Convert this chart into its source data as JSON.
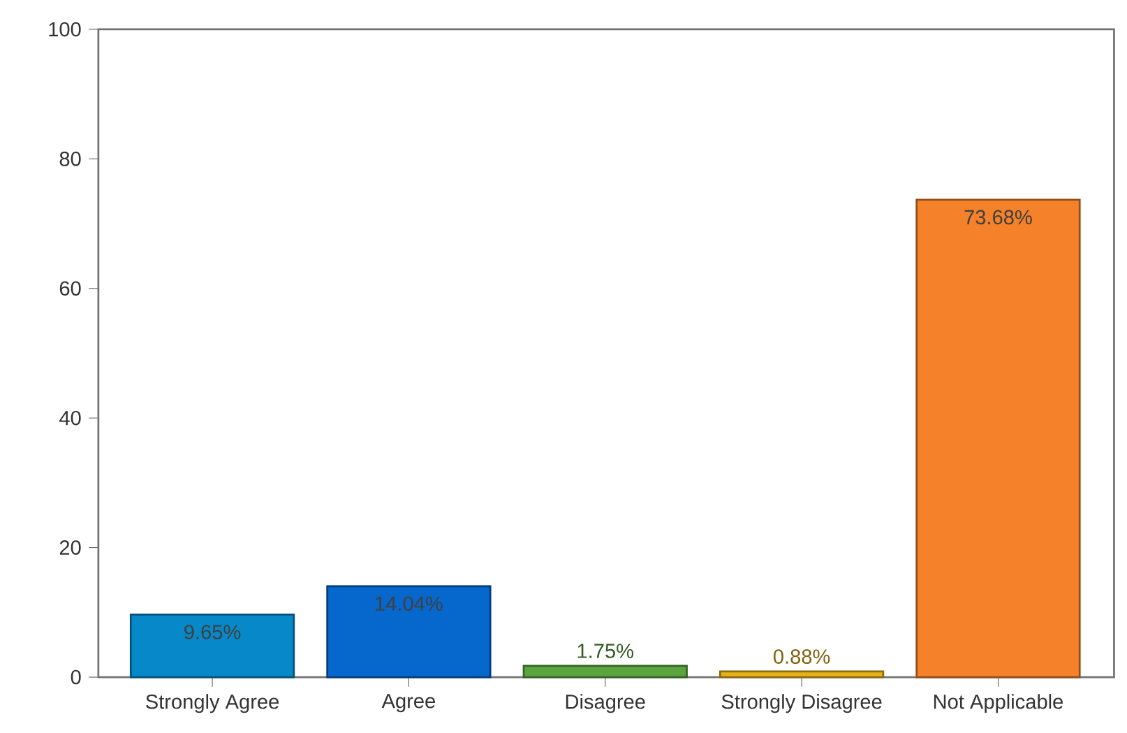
{
  "chart_data": {
    "type": "bar",
    "categories": [
      "Strongly Agree",
      "Agree",
      "Disagree",
      "Strongly Disagree",
      "Not Applicable"
    ],
    "values": [
      9.65,
      14.04,
      1.75,
      0.88,
      73.68
    ],
    "colors": [
      "#0788c9",
      "#0667cc",
      "#5aa540",
      "#e8b21a",
      "#f5822a"
    ],
    "value_labels": [
      "9.65%",
      "14.04%",
      "1.75%",
      "0.88%",
      "73.68%"
    ],
    "ylim": [
      0,
      100
    ],
    "yticks": [
      0,
      20,
      40,
      60,
      80,
      100
    ]
  }
}
